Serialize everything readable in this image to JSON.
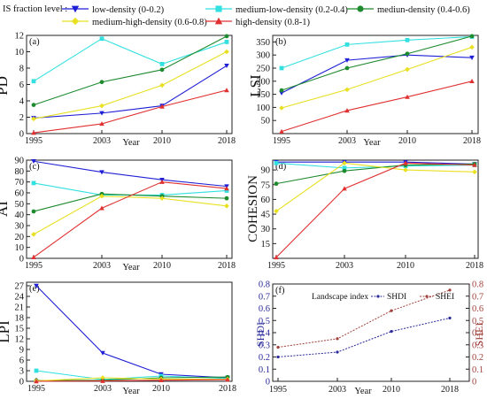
{
  "legend": {
    "title": "IS fraction level :",
    "entries": [
      {
        "label": "low-density  (0-0.2)",
        "color": "#1f1fd6",
        "marker": "triangle-down"
      },
      {
        "label": "medium-low-density (0.2-0.4)",
        "color": "#33e0e0",
        "marker": "square"
      },
      {
        "label": "mediun-density (0.4-0.6)",
        "color": "#1e8a2e",
        "marker": "circle"
      },
      {
        "label": "medium-high-density (0.6-0.8)",
        "color": "#e8e020",
        "marker": "diamond"
      },
      {
        "label": "high-density  (0.8-1)",
        "color": "#e03030",
        "marker": "triangle-up"
      }
    ]
  },
  "chart_data": [
    {
      "type": "line",
      "panel": "(a)",
      "ylabel": "PD",
      "xlabel": "Year",
      "categories": [
        "1995",
        "2003",
        "2010",
        "2018"
      ],
      "ylim": [
        0,
        12
      ],
      "yticks": [
        "0",
        "2",
        "4",
        "6",
        "8",
        "10",
        "12"
      ],
      "series": [
        {
          "name": "low-density  (0-0.2)",
          "values": [
            1.9,
            2.5,
            3.4,
            8.3
          ]
        },
        {
          "name": "medium-low-density (0.2-0.4)",
          "values": [
            6.4,
            11.6,
            8.5,
            11.2
          ]
        },
        {
          "name": "mediun-density (0.4-0.6)",
          "values": [
            3.5,
            6.3,
            7.8,
            11.9
          ]
        },
        {
          "name": "medium-high-density (0.6-0.8)",
          "values": [
            1.8,
            3.4,
            5.9,
            10.0
          ]
        },
        {
          "name": "high-density  (0.8-1)",
          "values": [
            0.1,
            1.2,
            3.3,
            5.3
          ]
        }
      ]
    },
    {
      "type": "line",
      "panel": "(b)",
      "ylabel": "LSI",
      "xlabel": "Year",
      "categories": [
        "1995",
        "2003",
        "2010",
        "2018"
      ],
      "ylim": [
        0,
        375
      ],
      "yticks": [
        "50",
        "100",
        "150",
        "200",
        "250",
        "300",
        "350"
      ],
      "series": [
        {
          "name": "low-density  (0-0.2)",
          "values": [
            155,
            280,
            300,
            290
          ]
        },
        {
          "name": "medium-low-density (0.2-0.4)",
          "values": [
            250,
            340,
            357,
            370
          ]
        },
        {
          "name": "mediun-density (0.4-0.6)",
          "values": [
            165,
            250,
            305,
            372
          ]
        },
        {
          "name": "medium-high-density (0.6-0.8)",
          "values": [
            98,
            168,
            245,
            330
          ]
        },
        {
          "name": "high-density  (0.8-1)",
          "values": [
            8,
            88,
            140,
            200
          ]
        }
      ]
    },
    {
      "type": "line",
      "panel": "(c)",
      "ylabel": "AI",
      "xlabel": "Year",
      "categories": [
        "1995",
        "2003",
        "2010",
        "2018"
      ],
      "ylim": [
        0,
        90
      ],
      "yticks": [
        "0",
        "10",
        "20",
        "30",
        "40",
        "50",
        "60",
        "70",
        "80",
        "90"
      ],
      "series": [
        {
          "name": "low-density  (0-0.2)",
          "values": [
            89,
            79,
            72,
            66
          ]
        },
        {
          "name": "medium-low-density (0.2-0.4)",
          "values": [
            69,
            58,
            58,
            62
          ]
        },
        {
          "name": "mediun-density (0.4-0.6)",
          "values": [
            43,
            59,
            57,
            55
          ]
        },
        {
          "name": "medium-high-density (0.6-0.8)",
          "values": [
            22,
            57,
            55,
            48
          ]
        },
        {
          "name": "high-density  (0.8-1)",
          "values": [
            1,
            46,
            70,
            64
          ]
        }
      ]
    },
    {
      "type": "line",
      "panel": "(d)",
      "ylabel": "COHESION",
      "xlabel": "",
      "categories": [
        "1995",
        "2003",
        "2010",
        "2018"
      ],
      "ylim": [
        0,
        100
      ],
      "yticks": [
        "15",
        "30",
        "45",
        "60",
        "75",
        "90"
      ],
      "series": [
        {
          "name": "low-density  (0-0.2)",
          "values": [
            98,
            98,
            98,
            96
          ]
        },
        {
          "name": "medium-low-density (0.2-0.4)",
          "values": [
            97,
            92,
            94,
            95
          ]
        },
        {
          "name": "mediun-density (0.4-0.6)",
          "values": [
            76,
            89,
            95,
            96
          ]
        },
        {
          "name": "medium-high-density (0.6-0.8)",
          "values": [
            48,
            97,
            90,
            88
          ]
        },
        {
          "name": "high-density  (0.8-1)",
          "values": [
            1,
            71,
            97,
            95
          ]
        }
      ]
    },
    {
      "type": "line",
      "panel": "(e)",
      "ylabel": "LPI",
      "xlabel": "Year",
      "categories": [
        "1995",
        "2003",
        "2010",
        "2018"
      ],
      "ylim": [
        0,
        28
      ],
      "yticks": [
        "0",
        "3",
        "6",
        "9",
        "12",
        "15",
        "18",
        "21",
        "24",
        "27"
      ],
      "series": [
        {
          "name": "low-density  (0-0.2)",
          "values": [
            27,
            8,
            2,
            1
          ]
        },
        {
          "name": "medium-low-density (0.2-0.4)",
          "values": [
            3,
            0.5,
            1.5,
            0.8
          ]
        },
        {
          "name": "mediun-density (0.4-0.6)",
          "values": [
            0.2,
            0.3,
            1,
            1.2
          ]
        },
        {
          "name": "medium-high-density (0.6-0.8)",
          "values": [
            0.1,
            1,
            0.6,
            0.6
          ]
        },
        {
          "name": "high-density  (0.8-1)",
          "values": [
            0,
            0.1,
            0.3,
            0.5
          ]
        }
      ]
    },
    {
      "type": "line",
      "panel": "(f)",
      "xlabel": "Year",
      "legend_title": "Landscape index",
      "categories": [
        "1995",
        "2003",
        "2010",
        "2018"
      ],
      "ylim": [
        0,
        0.8
      ],
      "yticks": [
        "0",
        "0.1",
        "0.2",
        "0.3",
        "0.4",
        "0.5",
        "0.6",
        "0.7",
        "0.8"
      ],
      "ylabel_left": "SHDI",
      "ylabel_right": "SHEI",
      "series": [
        {
          "name": "SHDI",
          "color": "#2a2a9a",
          "values": [
            0.2,
            0.24,
            0.41,
            0.52
          ]
        },
        {
          "name": "SHEI",
          "color": "#a0403a",
          "values": [
            0.28,
            0.35,
            0.58,
            0.75
          ]
        }
      ]
    }
  ]
}
